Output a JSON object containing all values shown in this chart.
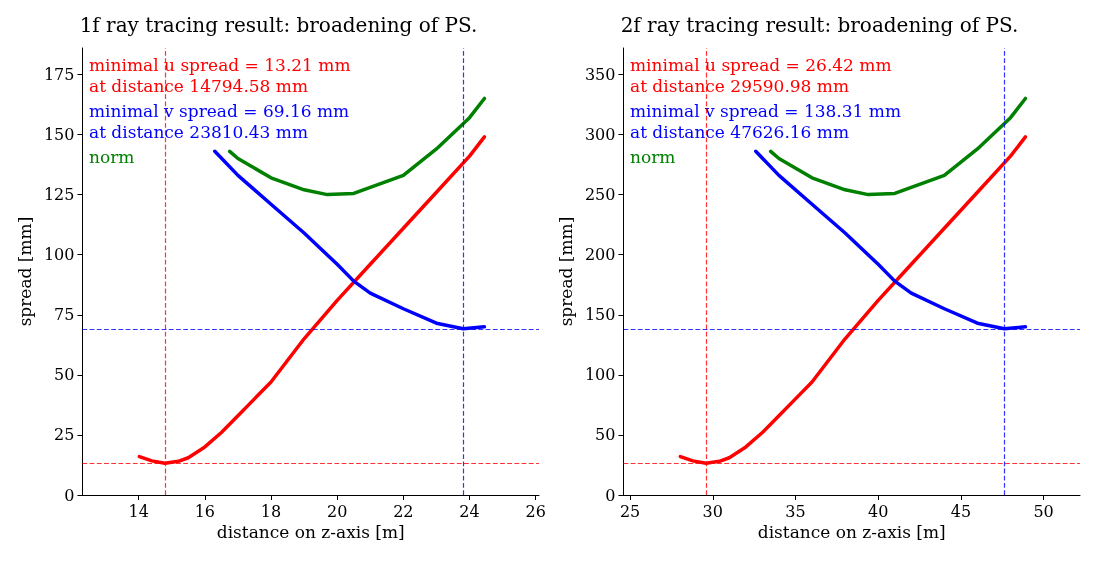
{
  "chart_data": [
    {
      "type": "line",
      "title": "1f ray tracing result: broadening of PS.",
      "xlabel": "distance on z-axis [m]",
      "ylabel": "spread [mm]",
      "xlim": [
        12.3,
        26.1
      ],
      "xticks": [
        14,
        16,
        18,
        20,
        22,
        24,
        26
      ],
      "ylim": [
        0,
        186
      ],
      "yticks": [
        0,
        25,
        50,
        75,
        100,
        125,
        150,
        175
      ],
      "grid": false,
      "legend": "top left",
      "marker": "none",
      "line_style": "solid",
      "series": [
        {
          "name": "minimal u spread = 13.21 mm\nat distance 14794.58 mm",
          "color": "#ff0000",
          "x": [
            14.02,
            14.4,
            14.79,
            15.2,
            15.5,
            16,
            16.5,
            17,
            17.5,
            18,
            19,
            20,
            21,
            22,
            23,
            24,
            24.45
          ],
          "values": [
            16,
            14.2,
            13.21,
            14,
            15.5,
            20,
            26,
            33,
            40,
            47,
            65,
            81,
            96,
            111,
            126,
            141,
            149
          ]
        },
        {
          "name": "minimal v spread = 69.16 mm\nat distance 23810.43 mm",
          "color": "#0000ff",
          "x": [
            16.3,
            17,
            18,
            19,
            20,
            20.5,
            21,
            22,
            23,
            23.81,
            24.45
          ],
          "values": [
            143,
            133,
            121,
            109,
            96,
            89,
            84,
            77.5,
            71.5,
            69.16,
            70
          ]
        },
        {
          "name": "norm",
          "color": "#008000",
          "x": [
            16.75,
            17,
            18,
            19,
            19.7,
            20.5,
            21,
            22,
            23,
            24,
            24.45
          ],
          "values": [
            143,
            140,
            132,
            127,
            125,
            125.5,
            128,
            133,
            144,
            157,
            165
          ]
        }
      ],
      "ref_lines": [
        {
          "axis": "x",
          "value": 14.79458,
          "color": "#ff0000",
          "line_style": "dashed"
        },
        {
          "axis": "y",
          "value": 13.21,
          "color": "#ff0000",
          "line_style": "dashed"
        },
        {
          "axis": "x",
          "value": 23.81043,
          "color": "#0000ff",
          "line_style": "dashed"
        },
        {
          "axis": "y",
          "value": 69.16,
          "color": "#0000ff",
          "line_style": "dashed"
        }
      ]
    },
    {
      "type": "line",
      "title": "2f ray tracing result: broadening of PS.",
      "xlabel": "distance on z-axis [m]",
      "ylabel": "spread [mm]",
      "xlim": [
        24.6,
        52.2
      ],
      "xticks": [
        25,
        30,
        35,
        40,
        45,
        50
      ],
      "ylim": [
        0,
        372
      ],
      "yticks": [
        0,
        50,
        100,
        150,
        200,
        250,
        300,
        350
      ],
      "grid": false,
      "legend": "top left",
      "marker": "none",
      "line_style": "solid",
      "series": [
        {
          "name": "minimal u spread = 26.42 mm\nat distance 29590.98 mm",
          "color": "#ff0000",
          "x": [
            28.04,
            28.8,
            29.59,
            30.4,
            31,
            32,
            33,
            34,
            35,
            36,
            38,
            40,
            42,
            44,
            46,
            48,
            48.9
          ],
          "values": [
            32,
            28.4,
            26.42,
            28,
            31,
            40,
            52,
            66,
            80,
            94,
            130,
            162,
            192,
            222,
            252,
            282,
            298
          ]
        },
        {
          "name": "minimal v spread = 138.31 mm\nat distance 47626.16 mm",
          "color": "#0000ff",
          "x": [
            32.6,
            34,
            36,
            38,
            40,
            41,
            42,
            44,
            46,
            47.63,
            48.9
          ],
          "values": [
            286,
            266,
            242,
            218,
            192,
            178,
            168,
            155,
            143,
            138.31,
            140
          ]
        },
        {
          "name": "norm",
          "color": "#008000",
          "x": [
            33.5,
            34,
            36,
            38,
            39.4,
            41,
            42,
            44,
            46,
            48,
            48.9
          ],
          "values": [
            286,
            280,
            264,
            254,
            250,
            251,
            256,
            266,
            288,
            314,
            330
          ]
        }
      ],
      "ref_lines": [
        {
          "axis": "x",
          "value": 29.59098,
          "color": "#ff0000",
          "line_style": "dashed"
        },
        {
          "axis": "y",
          "value": 26.42,
          "color": "#ff0000",
          "line_style": "dashed"
        },
        {
          "axis": "x",
          "value": 47.62616,
          "color": "#0000ff",
          "line_style": "dashed"
        },
        {
          "axis": "y",
          "value": 138.31,
          "color": "#0000ff",
          "line_style": "dashed"
        }
      ]
    }
  ]
}
